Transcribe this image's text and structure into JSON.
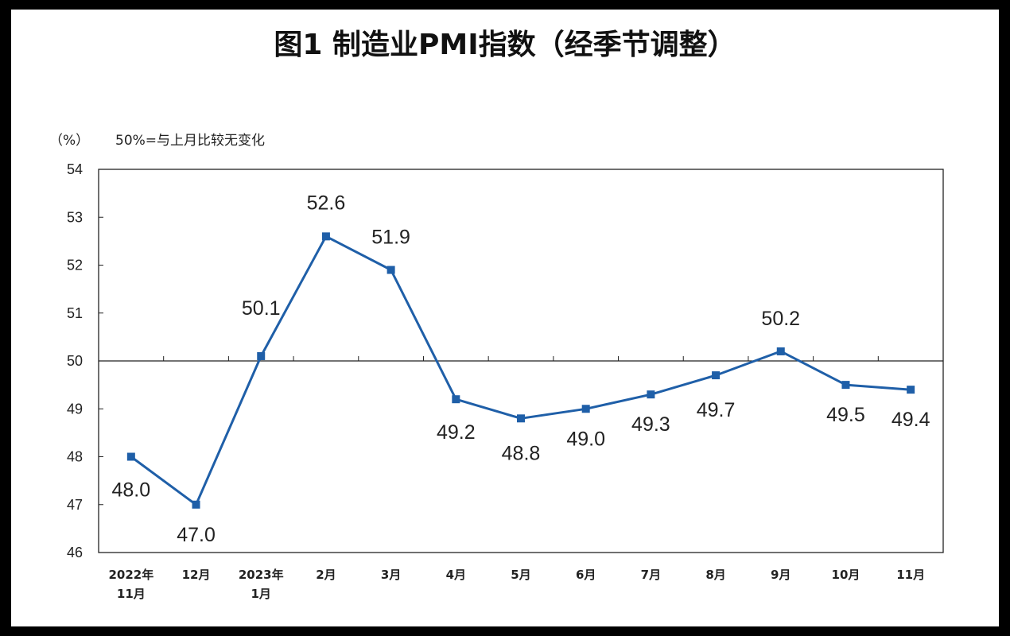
{
  "chart_data": {
    "type": "line",
    "title": "图1 制造业PMI指数（经季节调整）",
    "ylabel": "（%）",
    "note": "50%=与上月比较无变化",
    "ylim": [
      46,
      54
    ],
    "yticks": [
      "46",
      "47",
      "48",
      "49",
      "50",
      "51",
      "52",
      "53",
      "54"
    ],
    "reference_line": 50,
    "categories": [
      [
        "2022年",
        "11月"
      ],
      [
        "12月"
      ],
      [
        "2023年",
        "1月"
      ],
      [
        "2月"
      ],
      [
        "3月"
      ],
      [
        "4月"
      ],
      [
        "5月"
      ],
      [
        "6月"
      ],
      [
        "7月"
      ],
      [
        "8月"
      ],
      [
        "9月"
      ],
      [
        "10月"
      ],
      [
        "11月"
      ]
    ],
    "series": [
      {
        "values": [
          48.0,
          47.0,
          50.1,
          52.6,
          51.9,
          49.2,
          48.8,
          49.0,
          49.3,
          49.7,
          50.2,
          49.5,
          49.4
        ],
        "labels": [
          "48.0",
          "47.0",
          "50.1",
          "52.6",
          "51.9",
          "49.2",
          "48.8",
          "49.0",
          "49.3",
          "49.7",
          "50.2",
          "49.5",
          "49.4"
        ]
      }
    ],
    "grid": false,
    "legend": "none",
    "colors": {
      "line": "#1f5fa8",
      "axis": "#222222",
      "text": "#222222"
    }
  }
}
